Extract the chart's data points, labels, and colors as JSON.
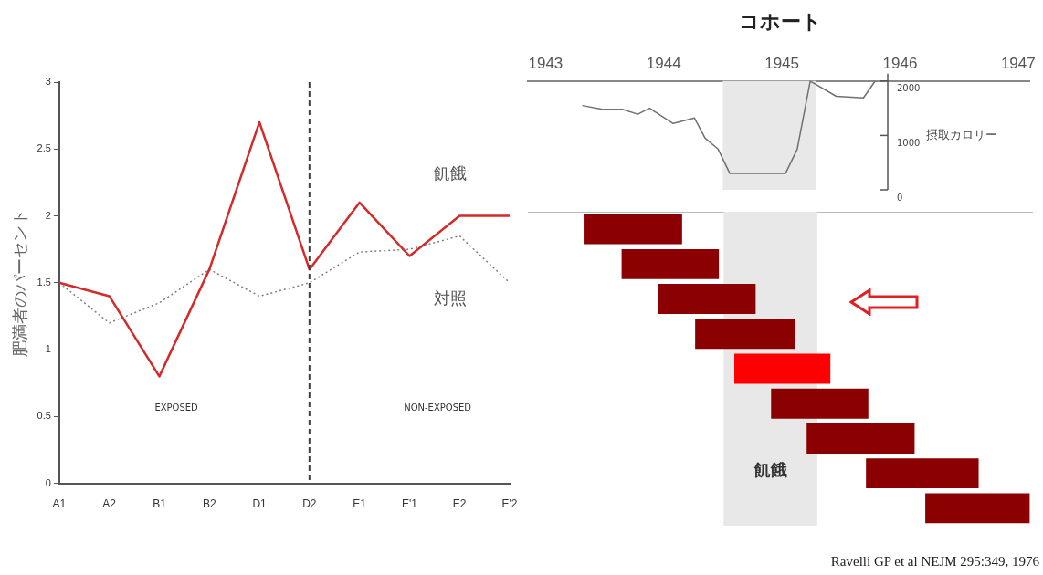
{
  "chart_data": [
    {
      "type": "line",
      "ylabel": "肥満者のパーセント",
      "categories": [
        "A1",
        "A2",
        "B1",
        "B2",
        "D1",
        "D2",
        "E1",
        "E'1",
        "E2",
        "E'2"
      ],
      "series": [
        {
          "name": "飢餓",
          "color": "#d42a2a",
          "values": [
            1.5,
            1.4,
            0.8,
            1.6,
            2.7,
            1.6,
            2.1,
            1.7,
            2.0,
            2.0
          ]
        },
        {
          "name": "対照",
          "color": "#808080",
          "line_style": "dotted",
          "values": [
            1.5,
            1.2,
            1.35,
            1.6,
            1.4,
            1.5,
            1.73,
            1.75,
            1.85,
            1.5
          ]
        }
      ],
      "ylim": [
        0,
        3
      ],
      "yticks": [
        0,
        0.5,
        1,
        1.5,
        2,
        2.5,
        3
      ],
      "grid": false,
      "legend": false,
      "marker": "none",
      "ref_lines": [
        {
          "axis": "x",
          "value": "D2",
          "line_style": "dashed",
          "color": "#404040"
        }
      ],
      "annotations": [
        "EXPOSED",
        "NON-EXPOSED"
      ]
    },
    {
      "type": "line",
      "title": "コホート",
      "y2label": "摂取カロリー",
      "series": [
        {
          "color": "#707070",
          "axis": "y2",
          "x": [
            1943.31,
            1943.48,
            1943.65,
            1943.78,
            1943.88,
            1944.08,
            1944.26,
            1944.35,
            1944.46,
            1944.56,
            1944.7,
            1945.03,
            1945.13,
            1945.24,
            1945.46,
            1945.69,
            1945.79
          ],
          "values": [
            1550,
            1480,
            1480,
            1390,
            1500,
            1220,
            1320,
            950,
            750,
            300,
            300,
            300,
            750,
            2000,
            1720,
            1690,
            2000
          ]
        }
      ],
      "xlim": [
        1942.85,
        1947.1
      ],
      "xticks": [
        1943,
        1944,
        1945,
        1946,
        1947
      ],
      "y2lim": [
        0,
        2000
      ],
      "y2ticks": [
        0,
        1000,
        2000
      ],
      "bands": [
        {
          "axis": "x",
          "from": 1944.5,
          "to": 1945.29,
          "color": "#e8e8e8"
        }
      ],
      "grid": false,
      "legend": false,
      "marker": "none"
    },
    {
      "type": "bar",
      "orientation": "horizontal",
      "categories": [
        null,
        null,
        null,
        null,
        null,
        null,
        null,
        null,
        null
      ],
      "base": [
        1943.32,
        1943.64,
        1943.95,
        1944.26,
        1944.59,
        1944.9,
        1945.2,
        1945.7,
        1946.2
      ],
      "values": [
        0.83,
        0.82,
        0.82,
        0.84,
        0.81,
        0.82,
        0.91,
        0.95,
        0.88
      ],
      "colors": [
        "#8b0000",
        "#8b0000",
        "#8b0000",
        "#8b0000",
        "#ff0000",
        "#8b0000",
        "#8b0000",
        "#8b0000",
        "#8b0000"
      ],
      "xlim": [
        1942.85,
        1947.1
      ],
      "tick_labels": false,
      "bands": [
        {
          "axis": "x",
          "from": 1944.5,
          "to": 1945.29,
          "color": "#e8e8e8",
          "label": "飢餓"
        }
      ],
      "grid": false,
      "legend": false,
      "annotations": [
        "Ravelli GP et al NEJM 295:349, 1976"
      ]
    }
  ]
}
